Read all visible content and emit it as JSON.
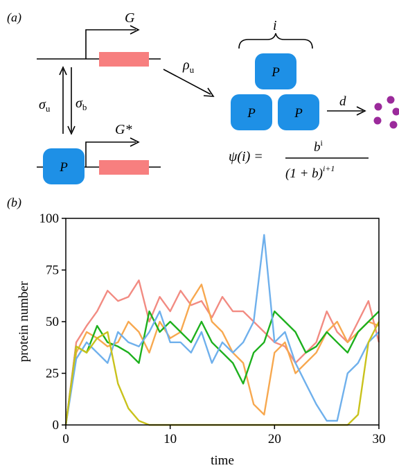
{
  "panel_a": {
    "label": "(a)",
    "gene_unbound": "G",
    "gene_bound": "G*",
    "rate_unbind": "σ",
    "rate_unbind_sub": "u",
    "rate_bind": "σ",
    "rate_bind_sub": "b",
    "rate_production": "ρ",
    "rate_production_sub": "u",
    "burst_size": "i",
    "degradation": "d",
    "protein_label": "P",
    "formula": {
      "lhs": "ψ(i) =",
      "num": "b",
      "num_sup": "i",
      "den": "(1 + b)",
      "den_sup": "i+1"
    },
    "colors": {
      "gene_box": "#f77f7f",
      "protein": "#1e90e6",
      "degraded": "#9b2a9b"
    }
  },
  "panel_b": {
    "label": "(b)"
  },
  "chart_data": {
    "type": "line",
    "xlabel": "time",
    "ylabel": "protein number",
    "xlim": [
      0,
      30
    ],
    "ylim": [
      0,
      100
    ],
    "xticks": [
      0,
      10,
      20,
      30
    ],
    "yticks": [
      0,
      25,
      50,
      75,
      100
    ],
    "x": [
      0,
      1,
      2,
      3,
      4,
      5,
      6,
      7,
      8,
      9,
      10,
      11,
      12,
      13,
      14,
      15,
      16,
      17,
      18,
      19,
      20,
      21,
      22,
      23,
      24,
      25,
      26,
      27,
      28,
      29,
      30
    ],
    "series": [
      {
        "color": "#f28b82",
        "values": [
          0,
          40,
          48,
          55,
          65,
          60,
          62,
          70,
          50,
          62,
          55,
          65,
          58,
          60,
          52,
          62,
          55,
          55,
          50,
          45,
          40,
          38,
          30,
          35,
          40,
          55,
          45,
          40,
          50,
          60,
          40
        ]
      },
      {
        "color": "#f7a84f",
        "values": [
          0,
          35,
          45,
          42,
          38,
          40,
          50,
          45,
          35,
          50,
          42,
          45,
          60,
          68,
          50,
          45,
          35,
          30,
          10,
          5,
          35,
          40,
          25,
          30,
          35,
          45,
          50,
          40,
          45,
          50,
          48
        ]
      },
      {
        "color": "#1db01d",
        "values": [
          0,
          38,
          35,
          48,
          40,
          38,
          35,
          30,
          55,
          45,
          50,
          45,
          40,
          50,
          40,
          35,
          30,
          20,
          35,
          40,
          55,
          50,
          45,
          35,
          38,
          45,
          40,
          35,
          45,
          50,
          55
        ]
      },
      {
        "color": "#6fb0ec",
        "values": [
          0,
          32,
          40,
          35,
          30,
          45,
          40,
          38,
          45,
          55,
          40,
          40,
          35,
          45,
          30,
          40,
          35,
          40,
          50,
          92,
          40,
          45,
          30,
          20,
          10,
          2,
          2,
          25,
          30,
          40,
          45
        ]
      },
      {
        "color": "#c9c21c",
        "values": [
          0,
          38,
          35,
          42,
          45,
          20,
          8,
          2,
          0,
          0,
          0,
          0,
          0,
          0,
          0,
          0,
          0,
          0,
          0,
          0,
          0,
          0,
          0,
          0,
          0,
          0,
          0,
          0,
          5,
          40,
          50
        ]
      }
    ]
  }
}
